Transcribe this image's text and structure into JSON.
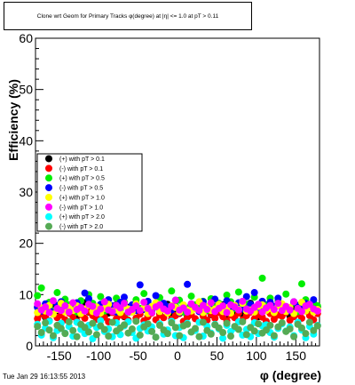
{
  "title": "Clone wrt Geom for Primary Tracks φ(degree) at |η| <= 1.0 at pT > 0.11",
  "timestamp": "Tue Jan 29 16:13:55 2013",
  "chart_data": {
    "type": "scatter",
    "title": "Clone wrt Geom for Primary Tracks φ(degree) at |η| <= 1.0 at pT > 0.11",
    "xlabel": "φ (degree)",
    "ylabel": "Efficiency (%)",
    "xlim": [
      -180,
      180
    ],
    "ylim": [
      0,
      60
    ],
    "xticks": [
      -150,
      -100,
      -50,
      0,
      50,
      100,
      150
    ],
    "yticks": [
      0,
      10,
      20,
      30,
      40,
      50,
      60
    ],
    "legend_position": "left-middle",
    "grid": false,
    "x_step": 5,
    "series": [
      {
        "name": "(+) with pT > 0.1",
        "color": "#000000",
        "values": [
          7.6,
          6.8,
          5.6,
          7.1,
          8.2,
          6.9,
          6.1,
          7.4,
          7.9,
          6.3,
          5.8,
          7.2,
          8.4,
          6.6,
          7.0,
          5.9,
          6.7,
          7.8,
          6.4,
          7.3,
          8.0,
          6.2,
          5.7,
          7.5,
          6.9,
          8.3,
          6.5,
          7.1,
          5.9,
          6.8,
          7.7,
          6.3,
          7.4,
          8.1,
          6.0,
          7.2,
          6.6,
          7.9,
          5.8,
          6.9,
          7.3,
          8.2,
          6.4,
          7.0,
          6.1,
          7.6,
          6.7,
          8.0,
          5.9,
          7.2,
          6.5,
          7.8,
          6.2,
          7.4,
          8.3,
          6.8,
          5.7,
          7.1,
          6.9,
          7.5,
          6.3,
          8.1,
          6.6,
          7.0,
          5.8,
          7.7,
          6.4,
          7.3,
          8.2,
          6.1,
          6.9,
          7.6
        ]
      },
      {
        "name": "(-) with pT > 0.1",
        "color": "#ff0000",
        "values": [
          5.3,
          6.2,
          5.8,
          4.9,
          6.6,
          5.5,
          6.0,
          5.1,
          6.4,
          5.7,
          4.8,
          6.1,
          5.4,
          6.7,
          5.9,
          5.2,
          6.3,
          5.6,
          4.7,
          6.5,
          5.3,
          6.0,
          5.8,
          5.0,
          6.6,
          5.4,
          6.2,
          4.9,
          5.7,
          6.4,
          5.1,
          6.0,
          5.5,
          6.8,
          5.2,
          5.9,
          6.3,
          4.8,
          5.6,
          6.1,
          5.3,
          6.7,
          5.8,
          5.0,
          6.2,
          5.4,
          6.5,
          5.7,
          4.9,
          6.0,
          5.5,
          6.4,
          5.1,
          5.9,
          6.6,
          5.3,
          6.1,
          5.6,
          4.8,
          6.3,
          5.2,
          6.0,
          5.8,
          6.5,
          5.0,
          5.7,
          6.2,
          5.4,
          6.8,
          5.9,
          5.1,
          6.3
        ]
      },
      {
        "name": "(+) with pT > 0.5",
        "color": "#00ee00",
        "values": [
          9.8,
          11.3,
          7.2,
          8.5,
          6.9,
          10.4,
          7.8,
          9.1,
          8.0,
          7.4,
          6.6,
          8.8,
          7.1,
          10.0,
          8.3,
          7.5,
          9.6,
          6.8,
          8.1,
          7.7,
          9.3,
          7.0,
          8.6,
          6.5,
          7.9,
          9.0,
          7.3,
          10.2,
          8.4,
          6.7,
          7.6,
          9.4,
          8.2,
          7.0,
          10.7,
          7.8,
          8.9,
          6.6,
          7.4,
          9.7,
          8.0,
          7.2,
          8.7,
          6.9,
          9.2,
          7.5,
          8.3,
          7.1,
          9.9,
          8.6,
          7.3,
          10.5,
          7.7,
          8.1,
          6.8,
          9.5,
          7.6,
          13.2,
          8.0,
          9.3,
          7.4,
          8.8,
          7.9,
          10.1,
          7.2,
          8.4,
          6.7,
          12.1,
          9.0,
          7.5,
          8.5,
          7.8
        ]
      },
      {
        "name": "(-) with pT > 0.5",
        "color": "#0000ff",
        "values": [
          7.5,
          6.8,
          8.2,
          7.1,
          6.4,
          7.9,
          8.6,
          7.2,
          6.9,
          7.7,
          8.4,
          7.0,
          10.3,
          9.2,
          7.6,
          6.7,
          8.1,
          7.4,
          9.0,
          7.8,
          6.6,
          8.5,
          9.5,
          7.3,
          8.0,
          6.9,
          11.9,
          7.1,
          8.7,
          7.5,
          9.8,
          6.8,
          8.3,
          7.7,
          7.0,
          8.9,
          6.5,
          7.9,
          12.0,
          8.2,
          7.3,
          6.7,
          8.6,
          7.6,
          7.1,
          9.1,
          8.0,
          7.4,
          8.8,
          6.9,
          7.8,
          8.4,
          7.2,
          9.6,
          8.1,
          10.4,
          7.5,
          8.7,
          7.0,
          8.5,
          7.7,
          9.3,
          8.0,
          7.4,
          6.8,
          8.6,
          7.9,
          7.2,
          8.3,
          7.6,
          9.0,
          7.1
        ]
      },
      {
        "name": "(+) with pT > 1.0",
        "color": "#ffff00",
        "values": [
          6.5,
          7.4,
          6.8,
          7.9,
          6.2,
          7.1,
          8.3,
          6.6,
          7.5,
          6.9,
          7.8,
          6.3,
          7.2,
          8.0,
          6.7,
          7.6,
          6.4,
          7.3,
          8.1,
          6.8,
          7.0,
          6.5,
          7.9,
          7.2,
          6.6,
          8.2,
          6.9,
          7.4,
          6.3,
          7.7,
          8.4,
          6.7,
          7.1,
          6.4,
          7.8,
          7.5,
          6.6,
          8.0,
          7.0,
          6.8,
          7.3,
          8.6,
          6.5,
          7.6,
          6.9,
          7.2,
          8.1,
          6.7,
          7.4,
          6.4,
          7.9,
          7.1,
          8.3,
          6.8,
          7.0,
          6.6,
          7.7,
          8.0,
          6.9,
          7.3,
          6.5,
          7.8,
          8.2,
          6.7,
          7.5,
          6.3,
          7.2,
          8.5,
          6.8,
          7.4,
          6.6,
          7.1
        ]
      },
      {
        "name": "(-) with pT > 1.0",
        "color": "#ff00ff",
        "values": [
          8.2,
          7.0,
          7.6,
          6.5,
          8.8,
          7.3,
          6.9,
          7.8,
          6.6,
          8.4,
          7.1,
          7.5,
          6.8,
          8.1,
          7.7,
          6.4,
          7.2,
          8.6,
          7.0,
          6.7,
          7.9,
          7.4,
          8.3,
          6.6,
          7.1,
          7.8,
          6.9,
          8.5,
          7.3,
          6.5,
          7.6,
          8.0,
          7.2,
          6.8,
          7.7,
          8.9,
          7.0,
          7.4,
          6.6,
          8.2,
          7.5,
          6.9,
          7.9,
          7.1,
          8.4,
          6.7,
          7.3,
          7.8,
          6.5,
          8.0,
          7.6,
          7.0,
          8.7,
          7.2,
          6.8,
          7.5,
          8.1,
          6.6,
          7.4,
          7.9,
          7.1,
          8.3,
          6.9,
          7.7,
          7.0,
          8.6,
          7.3,
          6.7,
          7.8,
          8.1,
          7.2,
          6.8
        ]
      },
      {
        "name": "(+) with pT > 2.0",
        "color": "#00ffff",
        "values": [
          4.2,
          2.1,
          3.5,
          4.8,
          1.6,
          3.0,
          4.4,
          2.5,
          3.8,
          1.9,
          4.6,
          3.2,
          2.4,
          4.0,
          1.4,
          3.6,
          4.9,
          2.8,
          3.3,
          1.8,
          4.5,
          2.2,
          3.9,
          4.7,
          2.6,
          1.5,
          3.4,
          4.1,
          2.9,
          3.7,
          1.7,
          4.3,
          2.3,
          3.1,
          4.8,
          2.0,
          3.6,
          1.6,
          4.4,
          2.7,
          3.0,
          4.6,
          1.9,
          3.8,
          2.5,
          4.2,
          3.3,
          1.5,
          4.0,
          2.8,
          3.5,
          4.7,
          2.1,
          3.2,
          1.8,
          4.5,
          2.4,
          3.9,
          4.1,
          2.6,
          1.7,
          3.4,
          4.3,
          2.9,
          3.7,
          2.0,
          4.6,
          3.1,
          1.6,
          3.8,
          2.3,
          4.0
        ]
      },
      {
        "name": "(-) with pT > 2.0",
        "color": "#55aa55",
        "values": [
          3.8,
          2.6,
          4.5,
          3.1,
          2.0,
          4.0,
          3.4,
          2.4,
          4.7,
          3.0,
          1.8,
          4.2,
          3.6,
          2.7,
          4.4,
          2.2,
          3.9,
          3.2,
          1.9,
          4.6,
          2.9,
          3.5,
          4.1,
          2.5,
          3.3,
          4.8,
          2.1,
          3.7,
          4.3,
          2.8,
          1.7,
          4.0,
          3.1,
          2.4,
          4.5,
          3.6,
          2.0,
          3.9,
          4.2,
          2.7,
          3.4,
          1.8,
          4.6,
          3.0,
          2.3,
          4.1,
          3.5,
          2.6,
          4.4,
          1.9,
          3.8,
          3.2,
          4.7,
          2.2,
          3.6,
          2.9,
          4.3,
          2.5,
          3.1,
          4.0,
          2.0,
          3.7,
          4.5,
          2.8,
          3.3,
          1.8,
          4.2,
          3.5,
          2.4,
          4.6,
          3.0,
          3.9
        ]
      }
    ]
  }
}
